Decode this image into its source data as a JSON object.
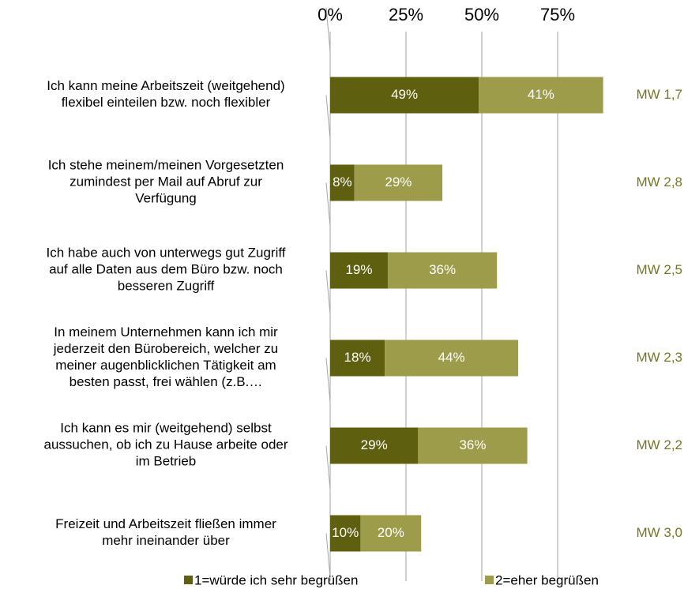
{
  "chart_data": {
    "type": "stacked-bar-horizontal",
    "categories": [
      "Ich kann meine Arbeitszeit (weitgehend)\nflexibel einteilen bzw. noch flexibler",
      "Ich stehe meinem/meinen Vorgesetzten\nzumindest per Mail auf Abruf zur\nVerfügung",
      "Ich habe auch von unterwegs gut Zugriff\nauf alle Daten aus dem Büro bzw. noch\nbesseren Zugriff",
      "In meinem Unternehmen kann ich mir\njederzeit den Bürobereich, welcher zu\nmeiner augenblicklichen Tätigkeit am\nbesten passt, frei wählen (z.B.…",
      "Ich kann es mir (weitgehend) selbst\naussuchen, ob ich zu Hause arbeite oder\nim Betrieb",
      "Freizeit und Arbeitszeit fließen immer\nmehr ineinander über"
    ],
    "series": [
      {
        "name": "1=würde ich sehr begrüßen",
        "color": "#5f5f10",
        "values": [
          49,
          8,
          19,
          18,
          29,
          10
        ],
        "value_labels": [
          "49%",
          "8%",
          "19%",
          "18%",
          "29%",
          "10%"
        ]
      },
      {
        "name": "2=eher begrüßen",
        "color": "#9c9c4a",
        "values": [
          41,
          29,
          36,
          44,
          36,
          20
        ],
        "value_labels": [
          "41%",
          "29%",
          "36%",
          "44%",
          "36%",
          "20%"
        ]
      }
    ],
    "annotations": [
      "MW 1,7",
      "MW 2,8",
      "MW 2,5",
      "MW 2,3",
      "MW 2,2",
      "MW 3,0"
    ],
    "xlim": [
      0,
      100
    ],
    "xticks": [
      {
        "value": 0,
        "label": "0%"
      },
      {
        "value": 25,
        "label": "25%"
      },
      {
        "value": 50,
        "label": "50%"
      },
      {
        "value": 75,
        "label": "75%"
      }
    ],
    "grid": true
  }
}
